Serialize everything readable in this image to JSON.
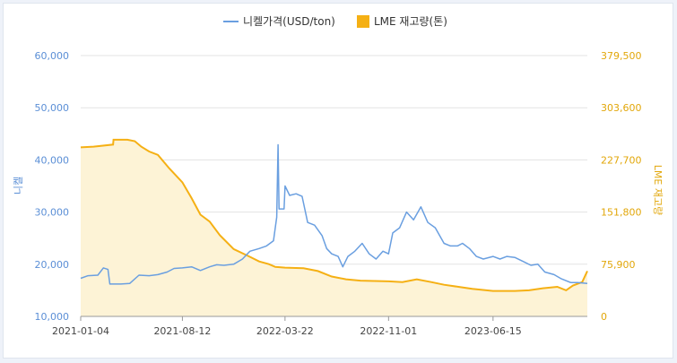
{
  "legend": {
    "series1_label": "니켈가격(USD/ton)",
    "series2_label": "LME 재고량(톤)"
  },
  "colors": {
    "price": "#6a9fe0",
    "inventory": "#f5b014",
    "inventory_fill": "#fdf3d6"
  },
  "chart_data": {
    "type": "line",
    "title": "",
    "ylabel": "니켈",
    "y2label": "LME 재고량",
    "ylim": [
      10000,
      60000
    ],
    "y2lim": [
      0,
      379500
    ],
    "yticks": [
      "60,000",
      "50,000",
      "40,000",
      "30,000",
      "20,000",
      "10,000"
    ],
    "y2ticks": [
      "379,500",
      "303,600",
      "227,700",
      "151,800",
      "75,900",
      "0"
    ],
    "xticks": [
      "2021-01-04",
      "2021-08-12",
      "2022-03-22",
      "2022-11-01",
      "2023-06-15"
    ],
    "grid": true,
    "legend": "top",
    "series": [
      {
        "name": "니켈가격(USD/ton)",
        "axis": "left",
        "type": "line",
        "points": [
          [
            "2021-01-04",
            17300
          ],
          [
            "2021-01-20",
            17800
          ],
          [
            "2021-02-10",
            17900
          ],
          [
            "2021-02-22",
            19300
          ],
          [
            "2021-03-04",
            19000
          ],
          [
            "2021-03-08",
            16200
          ],
          [
            "2021-04-01",
            16200
          ],
          [
            "2021-04-20",
            16300
          ],
          [
            "2021-05-10",
            17900
          ],
          [
            "2021-06-01",
            17800
          ],
          [
            "2021-06-20",
            18000
          ],
          [
            "2021-07-10",
            18500
          ],
          [
            "2021-07-25",
            19200
          ],
          [
            "2021-08-12",
            19300
          ],
          [
            "2021-09-01",
            19500
          ],
          [
            "2021-09-20",
            18800
          ],
          [
            "2021-10-10",
            19500
          ],
          [
            "2021-10-25",
            19900
          ],
          [
            "2021-11-10",
            19800
          ],
          [
            "2021-12-01",
            20000
          ],
          [
            "2021-12-20",
            21000
          ],
          [
            "2022-01-05",
            22500
          ],
          [
            "2022-01-25",
            23000
          ],
          [
            "2022-02-10",
            23500
          ],
          [
            "2022-02-25",
            24500
          ],
          [
            "2022-03-04",
            29000
          ],
          [
            "2022-03-07",
            42900
          ],
          [
            "2022-03-09",
            30600
          ],
          [
            "2022-03-20",
            30600
          ],
          [
            "2022-03-22",
            35000
          ],
          [
            "2022-04-01",
            33200
          ],
          [
            "2022-04-15",
            33500
          ],
          [
            "2022-04-28",
            33000
          ],
          [
            "2022-05-10",
            28000
          ],
          [
            "2022-05-25",
            27500
          ],
          [
            "2022-06-10",
            25500
          ],
          [
            "2022-06-20",
            23000
          ],
          [
            "2022-07-01",
            22000
          ],
          [
            "2022-07-15",
            21500
          ],
          [
            "2022-07-25",
            19500
          ],
          [
            "2022-08-05",
            21500
          ],
          [
            "2022-08-20",
            22500
          ],
          [
            "2022-09-05",
            24000
          ],
          [
            "2022-09-20",
            22000
          ],
          [
            "2022-10-05",
            21000
          ],
          [
            "2022-10-20",
            22500
          ],
          [
            "2022-11-01",
            22000
          ],
          [
            "2022-11-10",
            26000
          ],
          [
            "2022-11-25",
            27000
          ],
          [
            "2022-12-10",
            30000
          ],
          [
            "2022-12-25",
            28500
          ],
          [
            "2023-01-10",
            31000
          ],
          [
            "2023-01-25",
            28000
          ],
          [
            "2023-02-10",
            27000
          ],
          [
            "2023-03-01",
            24000
          ],
          [
            "2023-03-15",
            23500
          ],
          [
            "2023-03-30",
            23500
          ],
          [
            "2023-04-10",
            24000
          ],
          [
            "2023-04-25",
            23000
          ],
          [
            "2023-05-10",
            21500
          ],
          [
            "2023-05-25",
            21000
          ],
          [
            "2023-06-15",
            21500
          ],
          [
            "2023-06-30",
            21000
          ],
          [
            "2023-07-15",
            21500
          ],
          [
            "2023-08-01",
            21300
          ],
          [
            "2023-08-20",
            20500
          ],
          [
            "2023-09-05",
            19800
          ],
          [
            "2023-09-20",
            20000
          ],
          [
            "2023-10-05",
            18500
          ],
          [
            "2023-10-25",
            18000
          ],
          [
            "2023-11-10",
            17200
          ],
          [
            "2023-11-30",
            16500
          ],
          [
            "2023-12-15",
            16500
          ],
          [
            "2024-01-05",
            16300
          ]
        ]
      },
      {
        "name": "LME 재고량(톤)",
        "axis": "right",
        "type": "area",
        "points": [
          [
            "2021-01-04",
            246000
          ],
          [
            "2021-02-01",
            247000
          ],
          [
            "2021-03-15",
            250000
          ],
          [
            "2021-03-16",
            257000
          ],
          [
            "2021-04-15",
            257000
          ],
          [
            "2021-05-01",
            255000
          ],
          [
            "2021-05-15",
            247000
          ],
          [
            "2021-06-01",
            240000
          ],
          [
            "2021-06-20",
            235000
          ],
          [
            "2021-07-15",
            215000
          ],
          [
            "2021-08-12",
            195000
          ],
          [
            "2021-09-01",
            172000
          ],
          [
            "2021-09-20",
            148000
          ],
          [
            "2021-10-10",
            138000
          ],
          [
            "2021-11-01",
            118000
          ],
          [
            "2021-12-01",
            98000
          ],
          [
            "2022-01-01",
            88000
          ],
          [
            "2022-01-25",
            80000
          ],
          [
            "2022-02-15",
            76000
          ],
          [
            "2022-03-01",
            72000
          ],
          [
            "2022-03-22",
            71000
          ],
          [
            "2022-05-01",
            70000
          ],
          [
            "2022-06-01",
            66000
          ],
          [
            "2022-07-01",
            58000
          ],
          [
            "2022-08-01",
            54000
          ],
          [
            "2022-09-01",
            52000
          ],
          [
            "2022-11-01",
            51000
          ],
          [
            "2022-12-01",
            50000
          ],
          [
            "2023-01-01",
            54000
          ],
          [
            "2023-02-01",
            50000
          ],
          [
            "2023-03-01",
            46000
          ],
          [
            "2023-04-01",
            43000
          ],
          [
            "2023-05-01",
            40000
          ],
          [
            "2023-06-15",
            37000
          ],
          [
            "2023-08-01",
            37000
          ],
          [
            "2023-09-01",
            38000
          ],
          [
            "2023-10-01",
            41000
          ],
          [
            "2023-11-01",
            43000
          ],
          [
            "2023-11-20",
            38000
          ],
          [
            "2023-12-05",
            45000
          ],
          [
            "2023-12-25",
            50000
          ],
          [
            "2024-01-05",
            66000
          ]
        ]
      }
    ]
  }
}
